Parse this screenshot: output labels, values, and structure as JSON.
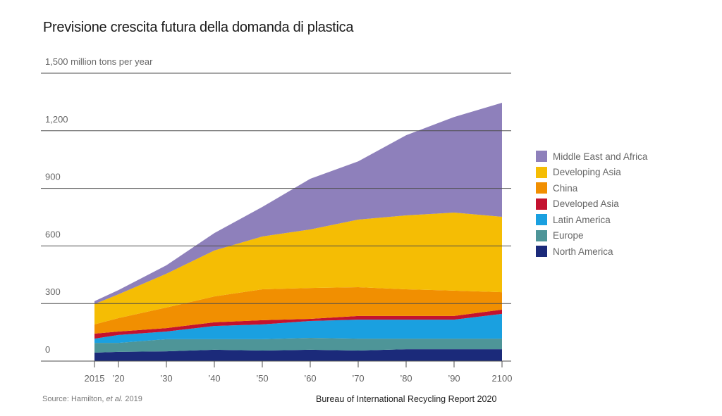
{
  "chart_data": {
    "type": "area",
    "stacked": true,
    "title": "Previsione crescita futura della domanda di plastica",
    "ylabel": "million tons per year",
    "y_unit_label": "1,500 million tons per year",
    "ylim": [
      0,
      1500
    ],
    "yticks": [
      0,
      300,
      600,
      900,
      1200,
      1500
    ],
    "ytick_labels": [
      "0",
      "300",
      "600",
      "900",
      "1,200",
      "1,500 million tons per year"
    ],
    "x": [
      2015,
      2020,
      2030,
      2040,
      2050,
      2060,
      2070,
      2080,
      2090,
      2100
    ],
    "xtick_labels": [
      "2015",
      "’20",
      "’30",
      "’40",
      "’50",
      "’60",
      "’70",
      "’80",
      "’90",
      "2100"
    ],
    "xlim": [
      2015,
      2100
    ],
    "grid": true,
    "legend_position": "right",
    "series": [
      {
        "name": "North America",
        "color": "#1b2a7a",
        "values": [
          44,
          48,
          51,
          59,
          55,
          59,
          55,
          62,
          62,
          62
        ]
      },
      {
        "name": "Europe",
        "color": "#4e9598",
        "values": [
          51,
          47,
          63,
          55,
          59,
          62,
          62,
          55,
          55,
          55
        ]
      },
      {
        "name": "Latin America",
        "color": "#1aa0e0",
        "values": [
          22,
          41,
          40,
          69,
          77,
          88,
          99,
          99,
          99,
          129
        ]
      },
      {
        "name": "Developed Asia",
        "color": "#c4122f",
        "values": [
          26,
          18,
          18,
          19,
          22,
          11,
          19,
          19,
          19,
          22
        ]
      },
      {
        "name": "China",
        "color": "#f18f01",
        "values": [
          48,
          70,
          107,
          135,
          161,
          161,
          150,
          139,
          132,
          91
        ]
      },
      {
        "name": "Developing Asia",
        "color": "#f5bd04",
        "values": [
          106,
          124,
          176,
          239,
          275,
          305,
          352,
          385,
          407,
          393
        ]
      },
      {
        "name": "Middle East and Africa",
        "color": "#8e80bb",
        "values": [
          15,
          22,
          44,
          91,
          154,
          264,
          304,
          418,
          498,
          594
        ]
      }
    ]
  },
  "footer": {
    "source_prefix": "Source: Hamilton, ",
    "source_italic": "et al.",
    "source_suffix": " 2019",
    "credit": "Bureau of International Recycling Report 2020"
  }
}
